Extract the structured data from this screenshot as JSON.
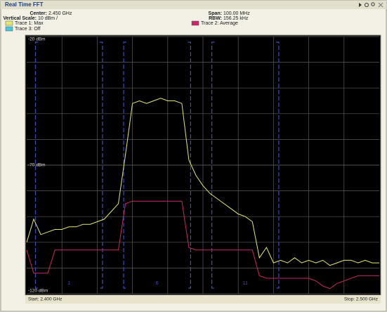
{
  "window": {
    "title": "Real Time FFT",
    "info": [
      {
        "label": "Center:",
        "value": "2.450 GHz"
      },
      {
        "label": "Vertical Scale:",
        "value": "10 dBm /"
      },
      {
        "label": "Span:",
        "value": "100.00 MHz"
      },
      {
        "label": "RBW:",
        "value": "156.25 kHz"
      }
    ]
  },
  "chart_data": {
    "type": "line",
    "x": [
      2.4,
      2.402,
      2.404,
      2.406,
      2.408,
      2.41,
      2.412,
      2.414,
      2.416,
      2.418,
      2.42,
      2.422,
      2.424,
      2.426,
      2.428,
      2.43,
      2.432,
      2.434,
      2.436,
      2.438,
      2.44,
      2.442,
      2.444,
      2.446,
      2.448,
      2.45,
      2.452,
      2.454,
      2.456,
      2.458,
      2.46,
      2.462,
      2.464,
      2.466,
      2.468,
      2.47,
      2.472,
      2.474,
      2.476,
      2.478,
      2.48,
      2.482,
      2.484,
      2.486,
      2.488,
      2.49,
      2.492,
      2.494,
      2.496,
      2.498,
      2.5
    ],
    "series": [
      {
        "name": "Trace 1: Max",
        "color": "#e8e870",
        "values": [
          -100,
          -91,
          -97,
          -96,
          -95,
          -95,
          -94,
          -94,
          -93,
          -93,
          -92,
          -91,
          -88,
          -85,
          -66,
          -46,
          -45,
          -46,
          -45,
          -44,
          -45,
          -45,
          -46,
          -68,
          -74,
          -78,
          -81,
          -83,
          -85,
          -87,
          -89,
          -90,
          -92,
          -106,
          -102,
          -108,
          -107,
          -108,
          -106,
          -108,
          -107,
          -108,
          -107,
          -109,
          -108,
          -107,
          -107,
          -108,
          -107,
          -108,
          -108
        ]
      },
      {
        "name": "Trace 2: Average",
        "color": "#c8286a",
        "values": [
          -103,
          -112,
          -112,
          -112,
          -103,
          -103,
          -103,
          -103,
          -103,
          -103,
          -103,
          -103,
          -103,
          -103,
          -85,
          -84,
          -84,
          -84,
          -84,
          -84,
          -84,
          -84,
          -84,
          -102,
          -103,
          -103,
          -103,
          -103,
          -103,
          -103,
          -103,
          -103,
          -103,
          -113,
          -114,
          -114,
          -114,
          -114,
          -114,
          -114,
          -114,
          -115,
          -117,
          -118,
          -116,
          -115,
          -114,
          -113,
          -113,
          -113,
          -113
        ]
      }
    ],
    "extra_legend": {
      "name": "Trace 3: Off",
      "color": "#48c8d8"
    },
    "xlim": [
      2.4,
      2.5
    ],
    "xticks": [
      {
        "value": 2.4,
        "label": "Start: 2.400 GHz"
      },
      {
        "value": 2.5,
        "label": "Stop: 2.500 GHz"
      }
    ],
    "ylim": [
      -120,
      -20
    ],
    "yticks": [
      {
        "value": -20,
        "label": "-20 dBm"
      },
      {
        "value": -70,
        "label": "-70 dBm"
      },
      {
        "value": -120,
        "label": "-120 dBm"
      }
    ],
    "xgrid": [
      2.41,
      2.42,
      2.43,
      2.44,
      2.45,
      2.46,
      2.47,
      2.48,
      2.49
    ],
    "ygrid": [
      -30,
      -40,
      -50,
      -60,
      -70,
      -80,
      -90,
      -100,
      -110
    ],
    "grid": true,
    "channel_color": "#3850b8",
    "channel_width": 0.019,
    "channels": [
      {
        "label": "1",
        "center": 2.412
      },
      {
        "label": "6",
        "center": 2.437
      },
      {
        "label": "11",
        "center": 2.462
      }
    ]
  }
}
